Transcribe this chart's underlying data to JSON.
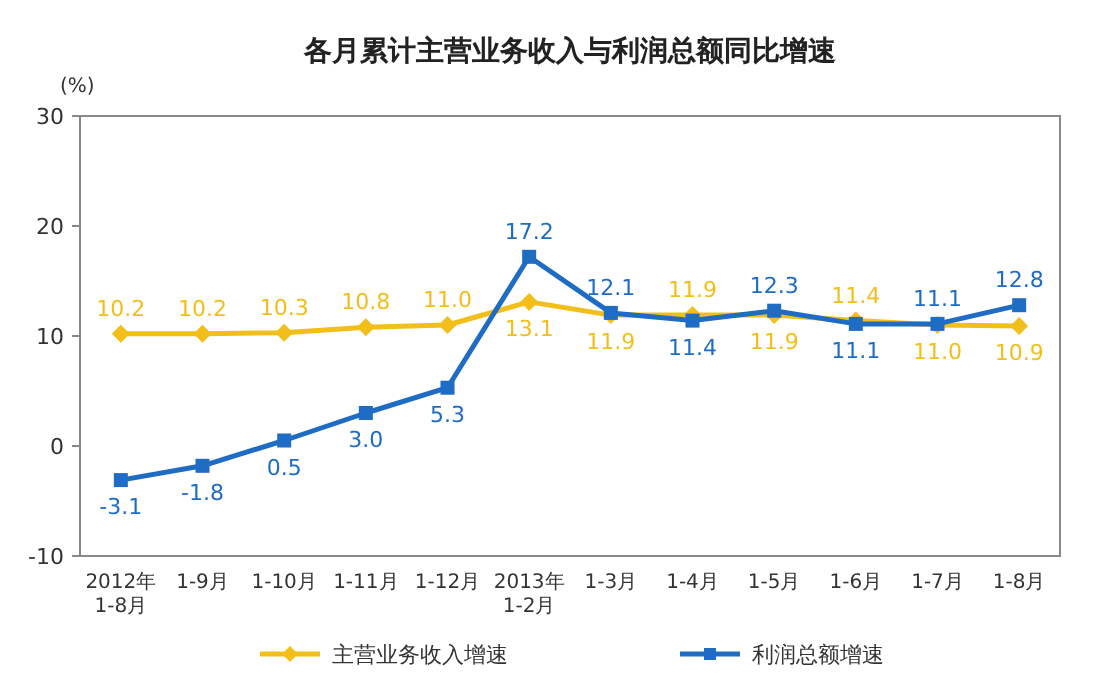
{
  "chart_data": {
    "type": "line",
    "title": "各月累计主营业务收入与利润总额同比增速",
    "ylabel": "(%)",
    "categories": [
      "2012年\n1-8月",
      "1-9月",
      "1-10月",
      "1-11月",
      "1-12月",
      "2013年\n1-2月",
      "1-3月",
      "1-4月",
      "1-5月",
      "1-6月",
      "1-7月",
      "1-8月"
    ],
    "series": [
      {
        "name": "主营业务收入增速",
        "color": "#f2bf1a",
        "marker": "diamond",
        "values": [
          10.2,
          10.2,
          10.3,
          10.8,
          11.0,
          13.1,
          11.9,
          11.9,
          11.9,
          11.4,
          11.0,
          10.9
        ],
        "value_labels": [
          "10.2",
          "10.2",
          "10.3",
          "10.8",
          "11.0",
          "13.1",
          "11.9",
          "11.9",
          "11.9",
          "11.4",
          "11.0",
          "10.9"
        ]
      },
      {
        "name": "利润总额增速",
        "color": "#1e6cc4",
        "marker": "square",
        "values": [
          -3.1,
          -1.8,
          0.5,
          3.0,
          5.3,
          17.2,
          12.1,
          11.4,
          12.3,
          11.1,
          11.1,
          12.8
        ],
        "value_labels": [
          "-3.1",
          "-1.8",
          "0.5",
          "3.0",
          "5.3",
          "17.2",
          "12.1",
          "11.4",
          "12.3",
          "11.1",
          "11.1",
          "12.8"
        ]
      }
    ],
    "ylim": [
      -10,
      30
    ],
    "yticks": [
      -10,
      0,
      10,
      20,
      30
    ],
    "grid": false,
    "legend": "bottom"
  }
}
